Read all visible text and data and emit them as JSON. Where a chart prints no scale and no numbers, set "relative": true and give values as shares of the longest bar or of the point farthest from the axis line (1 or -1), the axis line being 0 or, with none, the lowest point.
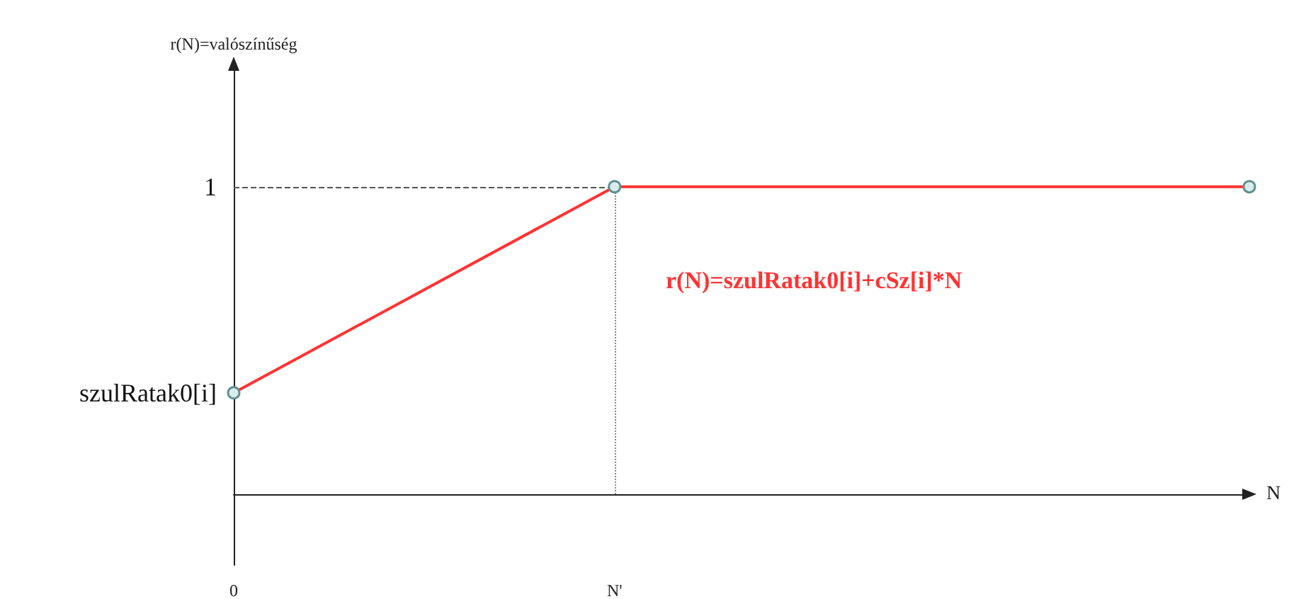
{
  "chart_data": {
    "type": "line",
    "relative": true,
    "xlabel": "N",
    "categories": [
      "0",
      null,
      null,
      "N'",
      null,
      null,
      null,
      null,
      null
    ],
    "series": [
      {
        "color": "#ff3333",
        "values": [
          0.33,
          null,
          null,
          1,
          null,
          null,
          null,
          null,
          1
        ]
      }
    ],
    "marker": "circle",
    "line_style": "solid",
    "grid": false,
    "ref_lines": [
      {
        "axis": "y",
        "value": 1,
        "line_style": "dashed",
        "color": "#555555"
      },
      {
        "axis": "x",
        "value": "N'",
        "line_style": "dotted",
        "color": "#888888"
      }
    ],
    "annotations": [
      {
        "text": "1",
        "x": "0",
        "y": 1
      },
      {
        "text": "szulRatak0[i]",
        "x": "0",
        "y": 0.33
      },
      "r(N)=valószínűség",
      "r(N)=szulRatak0[i]+cSz[i]*N"
    ]
  }
}
